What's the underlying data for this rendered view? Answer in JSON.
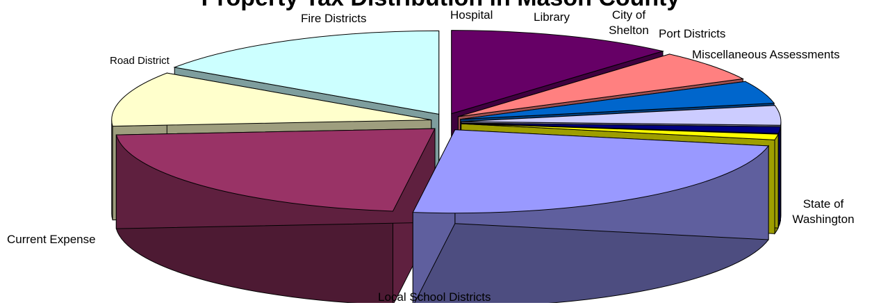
{
  "chart_data": {
    "type": "pie",
    "style": "3d-exploded",
    "title": "Property Tax Distribution in Mason County",
    "slices": [
      {
        "label": "Fire Districts",
        "value": 11.5,
        "color": "#660066"
      },
      {
        "label": "Hospital",
        "value": 6.0,
        "color": "#ff8080"
      },
      {
        "label": "Library",
        "value": 4.4,
        "color": "#0066cc"
      },
      {
        "label": "City of Shelton",
        "value": 3.8,
        "color": "#ccccff"
      },
      {
        "label": "Port Districts",
        "value": 1.3,
        "color": "#000080"
      },
      {
        "label": "Miscellaneous Assessments",
        "value": 1.1,
        "color": "#ffff00"
      },
      {
        "label": "State of Washington",
        "value": 24.0,
        "color": "#9999ff"
      },
      {
        "label": "Local School Districts",
        "value": 21.7,
        "color": "#993366"
      },
      {
        "label": "Current Expense",
        "value": 10.7,
        "color": "#ffffcc"
      },
      {
        "label": "Road District",
        "value": 15.5,
        "color": "#ccffff"
      }
    ],
    "legend": "none"
  },
  "labels": {
    "fire": "Fire Districts",
    "hospital": "Hospital",
    "library": "Library",
    "city_line1": "City of",
    "city_line2": "Shelton",
    "port": "Port Districts",
    "misc": "Miscellaneous Assessments",
    "road": "Road District",
    "state_line1": "State of",
    "state_line2": "Washington",
    "current": "Current Expense",
    "school": "Local School Districts"
  }
}
